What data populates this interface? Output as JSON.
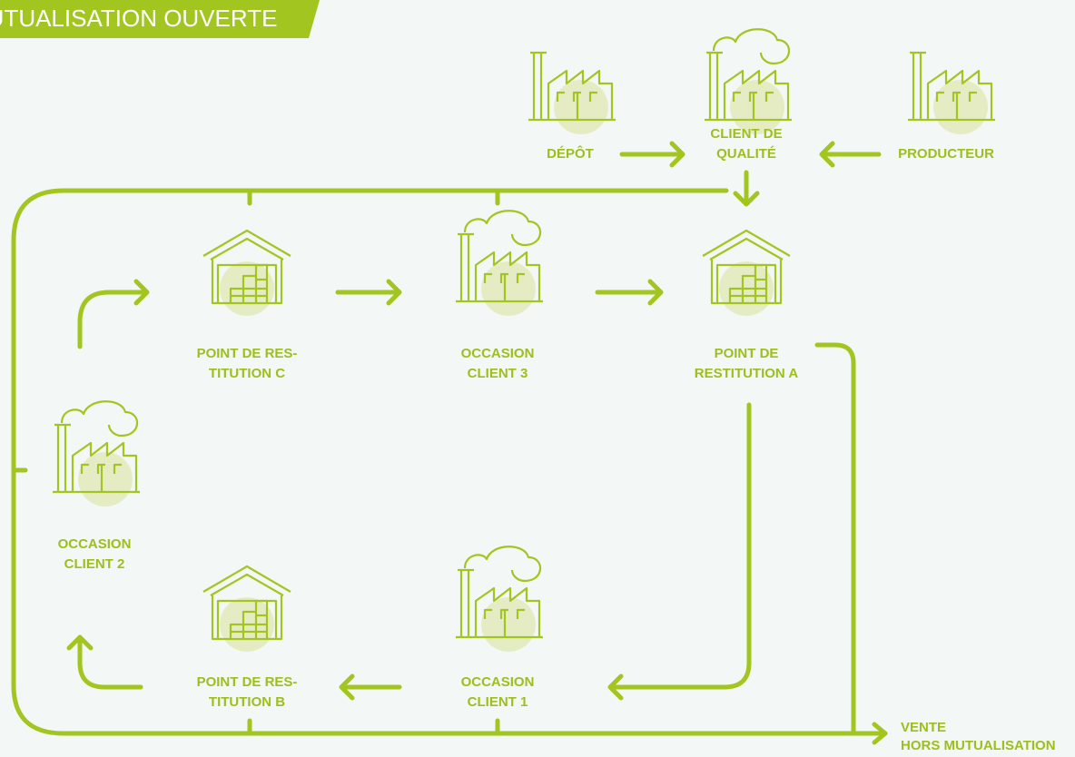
{
  "title": "MUTUALISATION OUVERTE",
  "nodes": [
    {
      "label": [
        "DÉPÔT"
      ]
    },
    {
      "label": [
        "CLIENT DE",
        "QUALITÉ"
      ]
    },
    {
      "label": [
        "PRODUCTEUR"
      ]
    },
    {
      "label": [
        "POINT DE RES-",
        "TITUTION C"
      ]
    },
    {
      "label": [
        "OCCASION",
        "CLIENT 3"
      ]
    },
    {
      "label": [
        "POINT DE",
        "RESTITUTION A"
      ]
    },
    {
      "label": [
        "OCCASION",
        "CLIENT 2"
      ]
    },
    {
      "label": [
        "POINT DE RES-",
        "TITUTION B"
      ]
    },
    {
      "label": [
        "OCCASION",
        "CLIENT 1"
      ]
    }
  ],
  "exit_label": [
    "VENTE",
    "HORS MUTUALISATION"
  ]
}
